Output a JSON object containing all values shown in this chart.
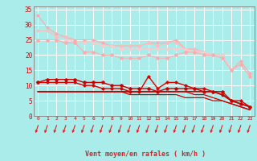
{
  "title": "",
  "xlabel": "Vent moyen/en rafales ( km/h )",
  "xlabel_color": "#cc0000",
  "bg_color": "#aaecea",
  "grid_color": "#ffffff",
  "axis_color": "#888888",
  "tick_color": "#cc0000",
  "x": [
    0,
    1,
    2,
    3,
    4,
    5,
    6,
    7,
    8,
    9,
    10,
    11,
    12,
    13,
    14,
    15,
    16,
    17,
    18,
    19,
    20,
    21,
    22,
    23
  ],
  "xlabels": [
    "0",
    "1",
    "2",
    "3",
    "4",
    "5",
    "6",
    "7",
    "8",
    "9",
    "10",
    "11",
    "12",
    "13",
    "14",
    "15",
    "16",
    "17",
    "18",
    "19",
    "20",
    "21",
    "22",
    "23"
  ],
  "ylim": [
    0,
    36
  ],
  "yticks": [
    0,
    5,
    10,
    15,
    20,
    25,
    30,
    35
  ],
  "series": [
    {
      "color": "#ffaaaa",
      "marker": "D",
      "markersize": 2.0,
      "linewidth": 0.8,
      "y": [
        33,
        29,
        27,
        26,
        25,
        25,
        25,
        24,
        23,
        23,
        23,
        23,
        24,
        24,
        24,
        25,
        22,
        22,
        21,
        20,
        20,
        15,
        18,
        14
      ]
    },
    {
      "color": "#ffbbbb",
      "marker": "D",
      "markersize": 2.0,
      "linewidth": 0.8,
      "y": [
        28,
        28,
        26,
        26,
        24,
        24,
        24,
        23,
        23,
        23,
        23,
        23,
        24,
        23,
        24,
        24,
        22,
        22,
        21,
        20,
        20,
        15,
        17,
        13
      ]
    },
    {
      "color": "#ffcccc",
      "marker": "D",
      "markersize": 2.0,
      "linewidth": 0.8,
      "y": [
        25,
        25,
        25,
        25,
        24,
        24,
        24,
        23,
        23,
        22,
        22,
        22,
        22,
        22,
        22,
        22,
        22,
        21,
        21,
        20,
        20,
        15,
        17,
        13
      ]
    },
    {
      "color": "#ffaaaa",
      "marker": "p",
      "markersize": 3,
      "linewidth": 0.7,
      "y": [
        25,
        25,
        25,
        24,
        24,
        21,
        21,
        20,
        20,
        19,
        19,
        19,
        20,
        19,
        19,
        20,
        21,
        21,
        20,
        20,
        19,
        15,
        17,
        13
      ]
    },
    {
      "color": "#dd0000",
      "marker": "D",
      "markersize": 2.0,
      "linewidth": 1.0,
      "y": [
        11,
        11,
        11,
        11,
        11,
        10,
        10,
        9,
        9,
        9,
        8,
        8,
        13,
        9,
        11,
        11,
        10,
        9,
        9,
        8,
        7,
        5,
        5,
        3
      ]
    },
    {
      "color": "#cc0000",
      "marker": "p",
      "markersize": 3,
      "linewidth": 1.0,
      "y": [
        11,
        12,
        12,
        12,
        12,
        11,
        11,
        11,
        10,
        10,
        9,
        9,
        9,
        8,
        9,
        9,
        9,
        9,
        8,
        8,
        8,
        5,
        4,
        3
      ]
    },
    {
      "color": "#cc0000",
      "marker": null,
      "markersize": 0,
      "linewidth": 1.2,
      "y": [
        8,
        8,
        8,
        8,
        8,
        8,
        8,
        8,
        8,
        8,
        8,
        8,
        8,
        8,
        8,
        8,
        8,
        8,
        8,
        8,
        7,
        5,
        4,
        3
      ]
    },
    {
      "color": "#cc0000",
      "marker": null,
      "markersize": 0,
      "linewidth": 0.9,
      "y": [
        8,
        8,
        8,
        8,
        8,
        8,
        8,
        8,
        8,
        8,
        8,
        8,
        8,
        8,
        8,
        8,
        8,
        7,
        7,
        6,
        5,
        4,
        3,
        2
      ]
    },
    {
      "color": "#cc0000",
      "marker": null,
      "markersize": 0,
      "linewidth": 0.9,
      "y": [
        8,
        8,
        8,
        8,
        8,
        8,
        8,
        8,
        8,
        8,
        7,
        7,
        7,
        7,
        7,
        7,
        6,
        6,
        6,
        5,
        5,
        4,
        3,
        2
      ]
    }
  ],
  "arrow_color": "#dd2222"
}
